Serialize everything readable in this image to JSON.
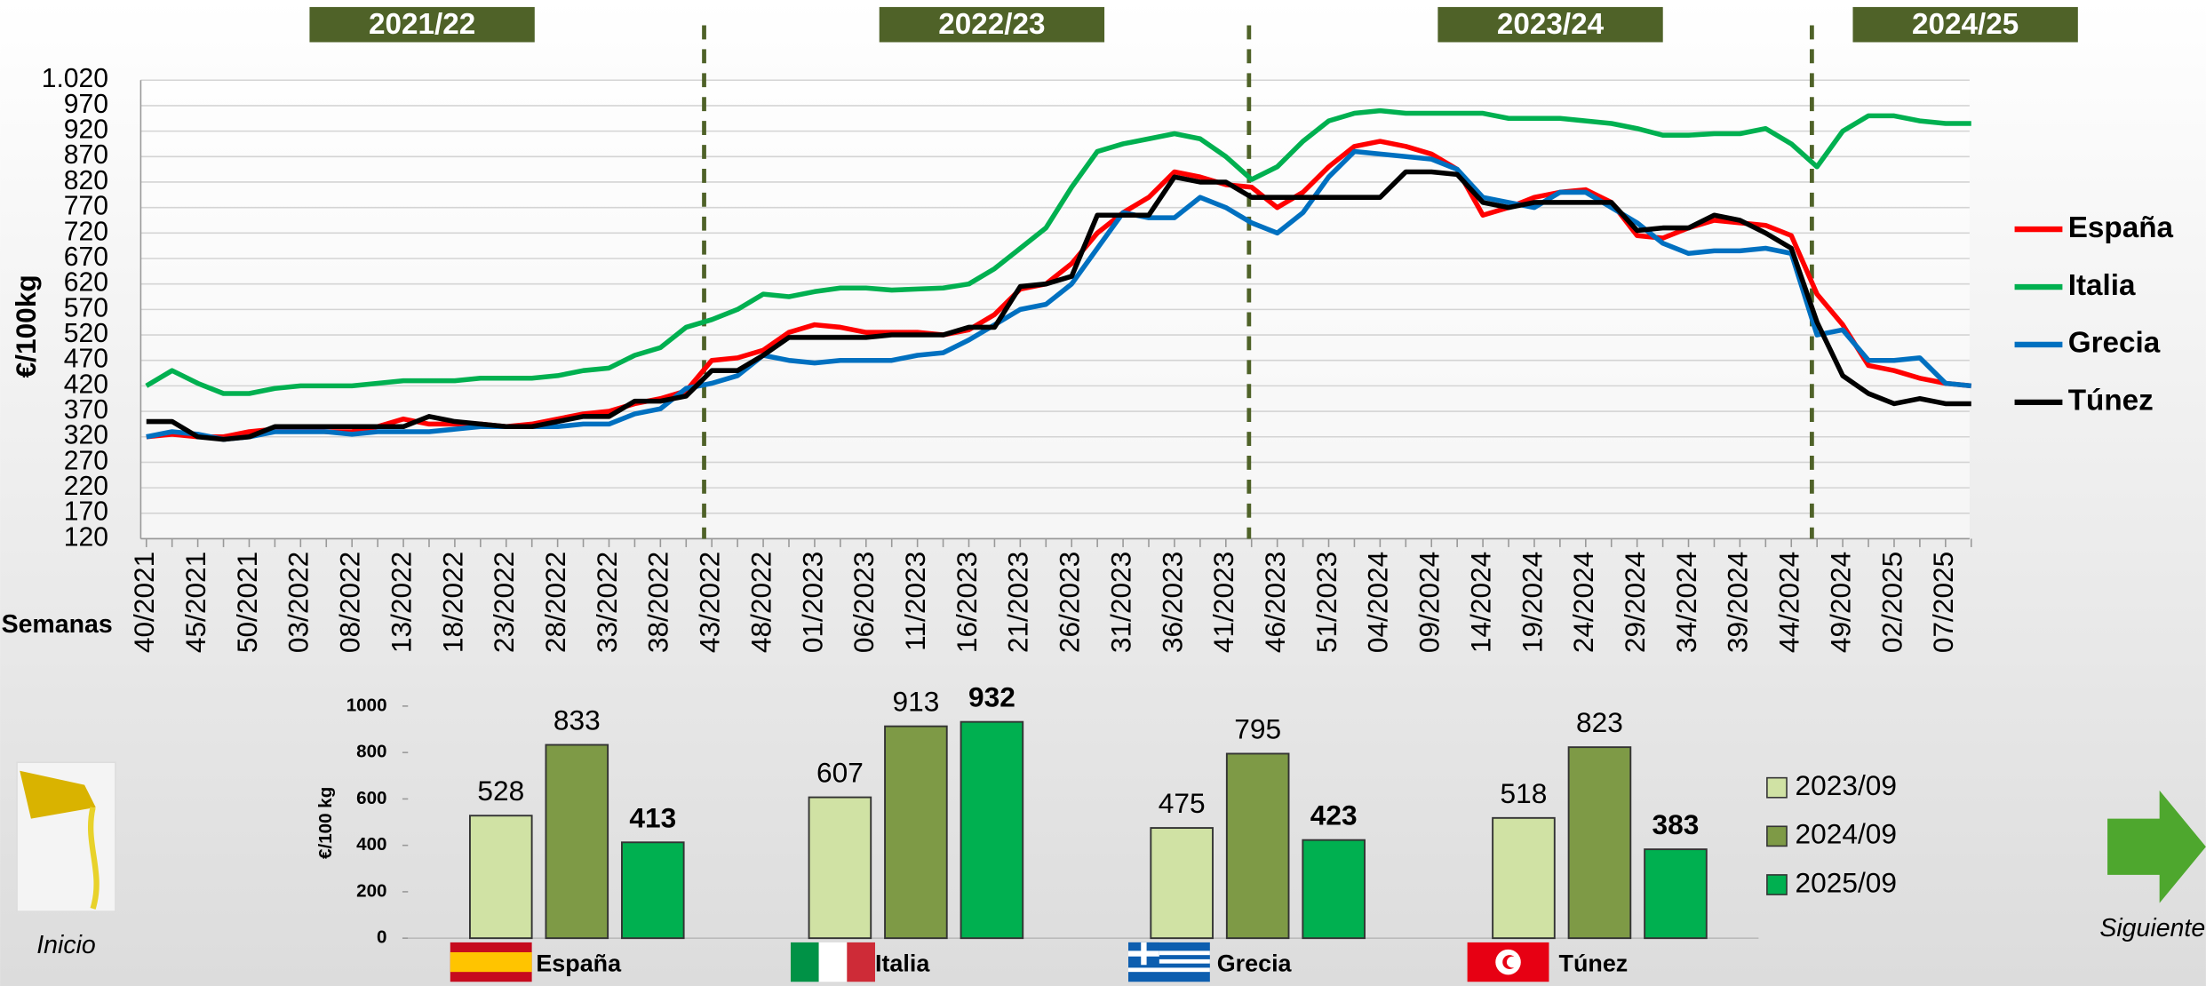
{
  "chart_data": [
    {
      "type": "line",
      "seasons": [
        "2021/22",
        "2022/23",
        "2023/24",
        "2024/25"
      ],
      "y_label": "€/100kg",
      "x_label": "Semanas",
      "categories": [
        "40/2021",
        null,
        "45/2021",
        null,
        "50/2021",
        null,
        "03/2022",
        null,
        "08/2022",
        null,
        "13/2022",
        null,
        "18/2022",
        null,
        "23/2022",
        null,
        "28/2022",
        null,
        "33/2022",
        null,
        "38/2022",
        null,
        "43/2022",
        null,
        "48/2022",
        null,
        "01/2023",
        null,
        "06/2023",
        null,
        "11/2023",
        null,
        "16/2023",
        null,
        "21/2023",
        null,
        "26/2023",
        null,
        "31/2023",
        null,
        "36/2023",
        null,
        "41/2023",
        null,
        "46/2023",
        null,
        "51/2023",
        null,
        "04/2024",
        null,
        "09/2024",
        null,
        "14/2024",
        null,
        "19/2024",
        null,
        "24/2024",
        null,
        "29/2024",
        null,
        "34/2024",
        null,
        "39/2024",
        null,
        "44/2024",
        null,
        "49/2024",
        null,
        "02/2025",
        null,
        "07/2025",
        null
      ],
      "series": [
        {
          "name": "España",
          "color": "#ff0000",
          "values": [
            320,
            325,
            320,
            320,
            330,
            335,
            335,
            330,
            330,
            340,
            355,
            345,
            345,
            345,
            340,
            345,
            355,
            365,
            370,
            385,
            395,
            410,
            470,
            475,
            490,
            525,
            540,
            535,
            525,
            525,
            525,
            520,
            530,
            560,
            610,
            620,
            660,
            720,
            760,
            790,
            840,
            830,
            815,
            810,
            770,
            800,
            850,
            890,
            900,
            890,
            875,
            845,
            755,
            770,
            790,
            800,
            805,
            780,
            715,
            710,
            730,
            745,
            740,
            735,
            715,
            600,
            540,
            460,
            450,
            435,
            425,
            420
          ]
        },
        {
          "name": "Italia",
          "color": "#00b050",
          "values": [
            420,
            450,
            425,
            405,
            405,
            415,
            420,
            420,
            420,
            425,
            430,
            430,
            430,
            435,
            435,
            435,
            440,
            450,
            455,
            480,
            495,
            535,
            550,
            570,
            600,
            595,
            605,
            612,
            612,
            608,
            610,
            612,
            620,
            650,
            690,
            730,
            810,
            880,
            895,
            905,
            915,
            905,
            870,
            825,
            850,
            900,
            940,
            955,
            960,
            955,
            955,
            955,
            955,
            945,
            945,
            945,
            940,
            935,
            925,
            912,
            912,
            915,
            915,
            925,
            895,
            850,
            920,
            950,
            950,
            940,
            935,
            935
          ]
        },
        {
          "name": "Grecia",
          "color": "#0070c0",
          "values": [
            320,
            330,
            325,
            315,
            320,
            330,
            330,
            330,
            325,
            330,
            330,
            330,
            335,
            340,
            340,
            340,
            340,
            345,
            345,
            365,
            375,
            415,
            425,
            440,
            480,
            470,
            465,
            470,
            470,
            470,
            480,
            485,
            510,
            540,
            570,
            580,
            620,
            690,
            760,
            750,
            750,
            790,
            770,
            740,
            720,
            760,
            830,
            880,
            875,
            870,
            865,
            845,
            790,
            780,
            770,
            800,
            800,
            770,
            740,
            700,
            680,
            685,
            685,
            690,
            680,
            520,
            530,
            470,
            470,
            475,
            425,
            420
          ]
        },
        {
          "name": "Túnez",
          "color": "#000000",
          "values": [
            350,
            350,
            320,
            315,
            320,
            340,
            340,
            340,
            340,
            340,
            340,
            360,
            350,
            345,
            340,
            340,
            350,
            360,
            360,
            390,
            390,
            400,
            450,
            450,
            480,
            515,
            515,
            515,
            515,
            520,
            520,
            520,
            535,
            535,
            615,
            620,
            635,
            755,
            755,
            755,
            830,
            820,
            820,
            790,
            790,
            790,
            790,
            790,
            790,
            840,
            840,
            835,
            780,
            770,
            780,
            780,
            780,
            780,
            725,
            730,
            730,
            755,
            745,
            720,
            690,
            545,
            440,
            405,
            385,
            395,
            385,
            385
          ]
        }
      ],
      "ylim": [
        120,
        1020
      ],
      "yticks": [
        120,
        170,
        220,
        270,
        320,
        370,
        420,
        470,
        520,
        570,
        620,
        670,
        720,
        770,
        820,
        870,
        920,
        970,
        {
          "value": 1020,
          "label": "1.020"
        }
      ],
      "grid": true,
      "legend": "right"
    },
    {
      "type": "bar",
      "y_label": "€/100 kg",
      "categories": [
        "España",
        "Italia",
        "Grecia",
        "Túnez"
      ],
      "series": [
        {
          "name": "2023/09",
          "color": "#d0e2a4",
          "values": [
            528,
            607,
            475,
            518
          ]
        },
        {
          "name": "2024/09",
          "color": "#7e9a46",
          "values": [
            833,
            913,
            795,
            823
          ]
        },
        {
          "name": "2025/09",
          "color": "#00b050",
          "values": [
            413,
            932,
            423,
            383
          ]
        }
      ],
      "ylim": [
        0,
        1000
      ],
      "yticks": [
        0,
        200,
        400,
        600,
        800,
        1000
      ],
      "legend": "right"
    }
  ],
  "nav": {
    "home": "Inicio",
    "next": "Siguiente"
  }
}
